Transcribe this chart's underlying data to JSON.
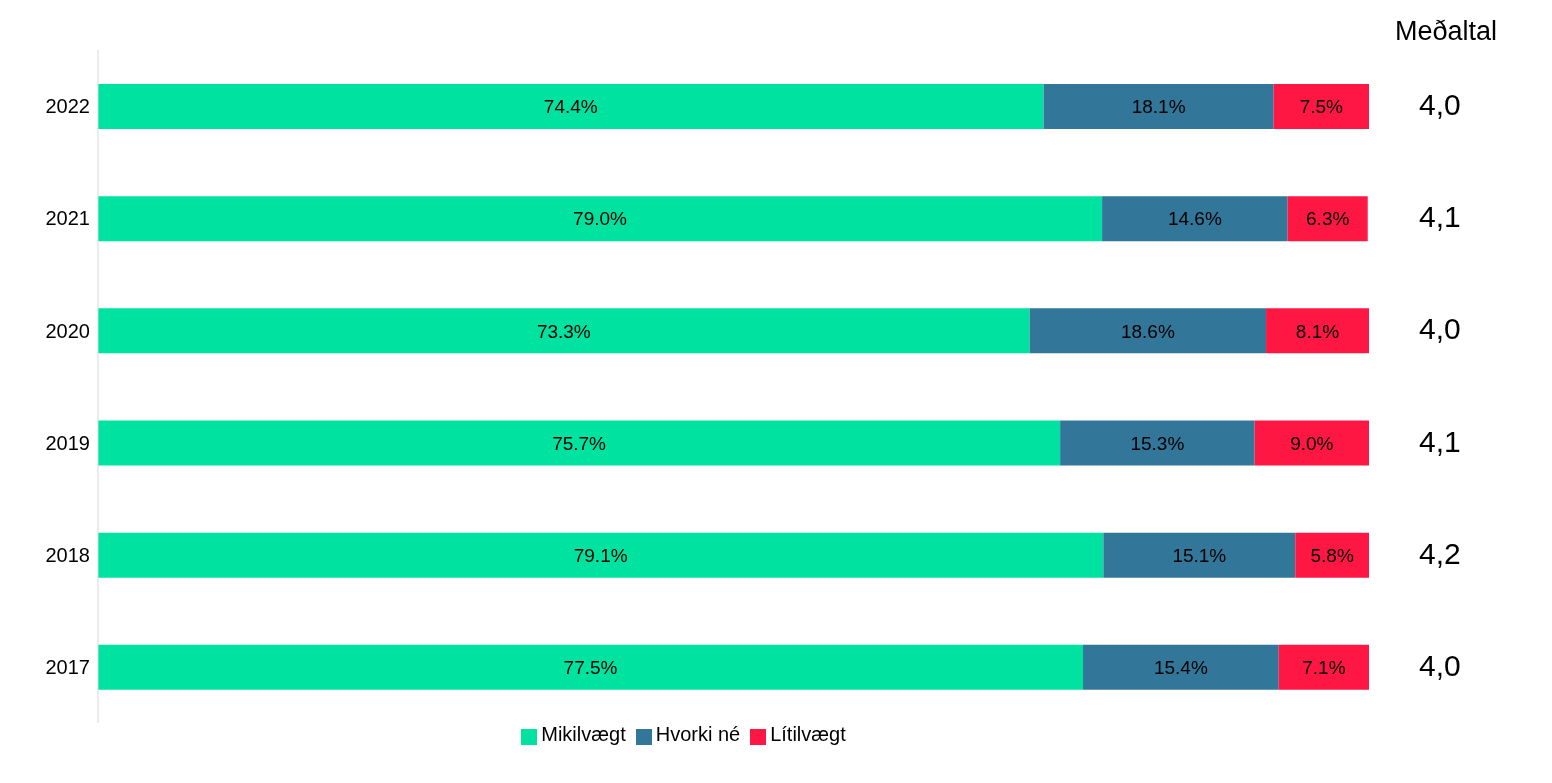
{
  "chart_data": {
    "type": "bar",
    "orientation": "horizontal",
    "stacked": true,
    "categories": [
      "2022",
      "2021",
      "2020",
      "2019",
      "2018",
      "2017"
    ],
    "xlim": [
      0,
      100
    ],
    "tick_labels": "y",
    "legend": "bottom",
    "series": [
      {
        "name": "Mikilvægt",
        "color": "#00e3a0",
        "values": [
          74.4,
          79.0,
          73.3,
          75.7,
          79.1,
          77.5
        ],
        "value_labels": [
          "74.4%",
          "79.0%",
          "73.3%",
          "75.7%",
          "79.1%",
          "77.5%"
        ]
      },
      {
        "name": "Hvorki né",
        "color": "#327699",
        "values": [
          18.1,
          14.6,
          18.6,
          15.3,
          15.1,
          15.4
        ],
        "value_labels": [
          "18.1%",
          "14.6%",
          "18.6%",
          "15.3%",
          "15.1%",
          "15.4%"
        ]
      },
      {
        "name": "Lítilvægt",
        "color": "#ff1744",
        "values": [
          7.5,
          6.3,
          8.1,
          9.0,
          5.8,
          7.1
        ],
        "value_labels": [
          "7.5%",
          "6.3%",
          "8.1%",
          "9.0%",
          "5.8%",
          "7.1%"
        ]
      }
    ],
    "annotations": [
      "Meðaltal",
      "4,0",
      "4,1",
      "4,0",
      "4,1",
      "4,2",
      "4,0"
    ]
  }
}
